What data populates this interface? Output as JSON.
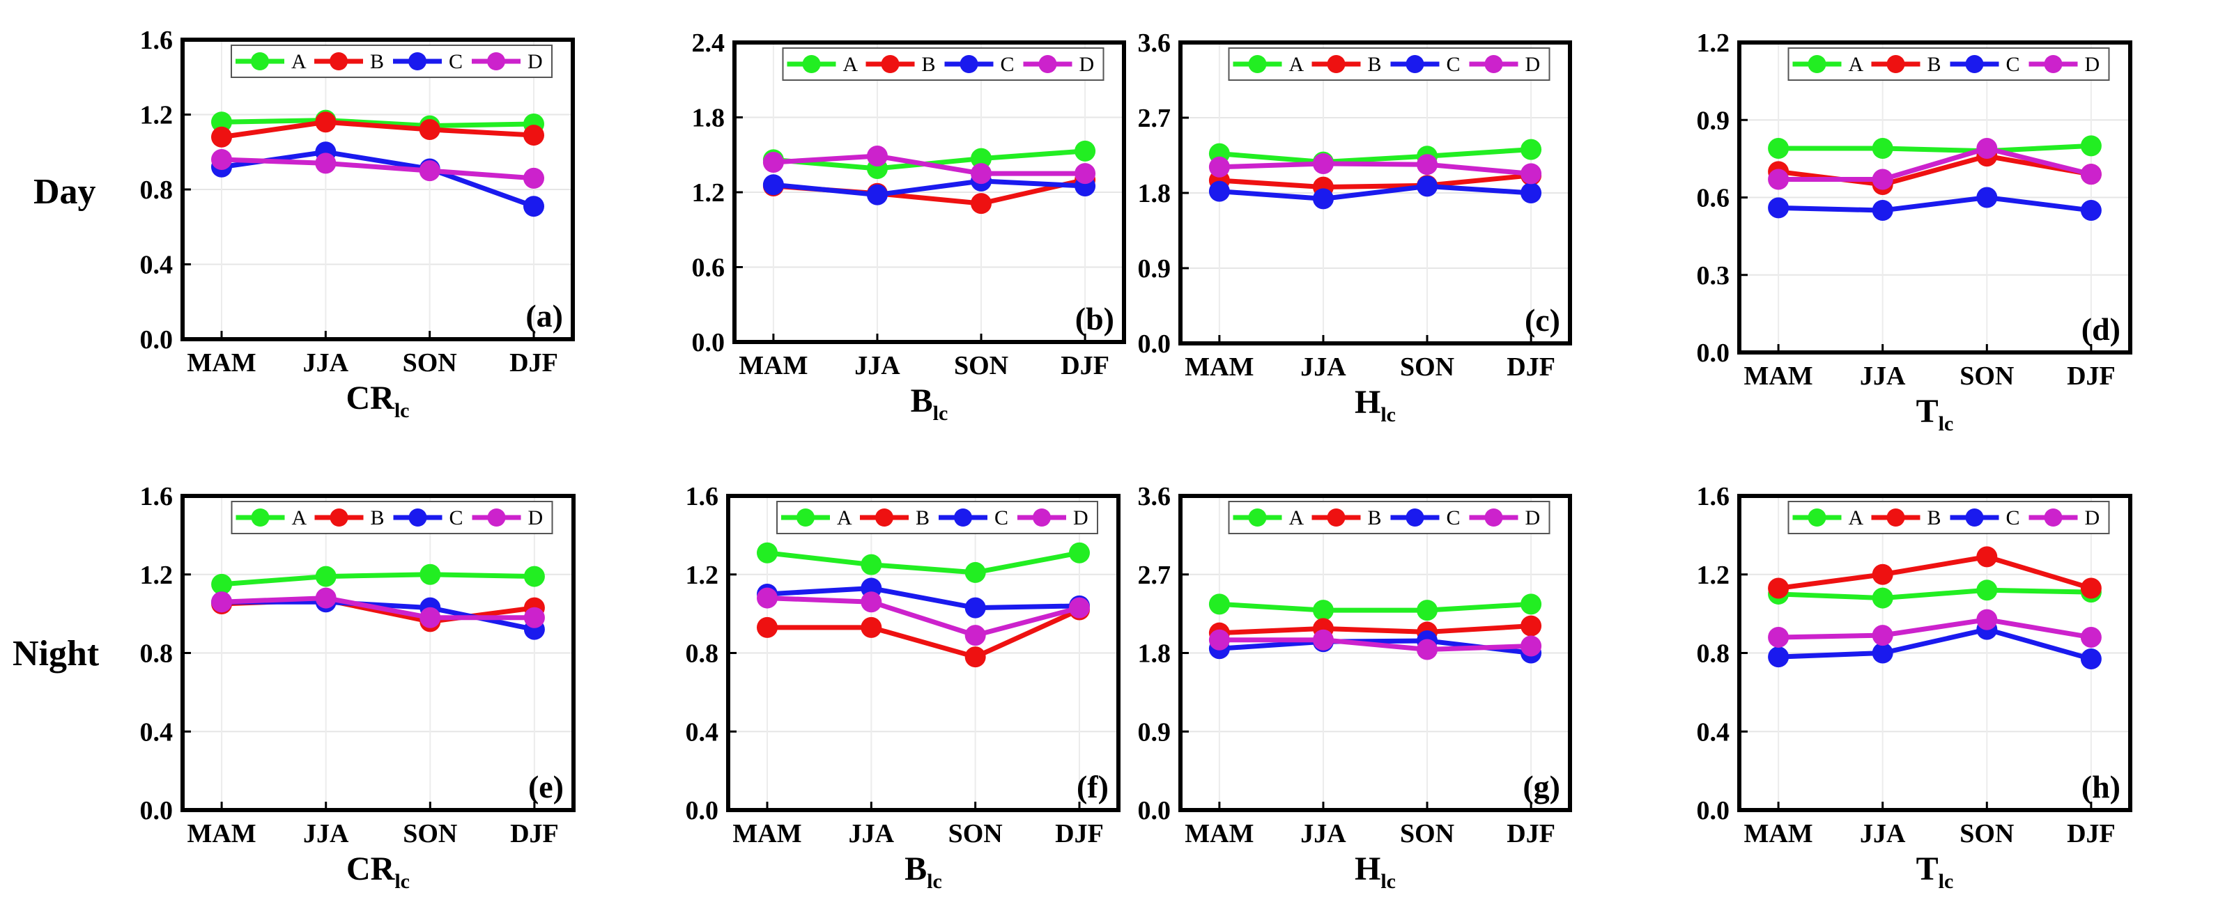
{
  "colors": {
    "A": "#22ee22",
    "B": "#ee1111",
    "C": "#1a1aee",
    "D": "#cc22cc"
  },
  "rows": [
    "Day",
    "Night"
  ],
  "chart_data": [
    {
      "type": "line",
      "label": "(a)",
      "xlabel": {
        "main": "CR",
        "sub": "lc"
      },
      "categories": [
        "MAM",
        "JJA",
        "SON",
        "DJF"
      ],
      "ylim": [
        0,
        1.6
      ],
      "yticks": [
        "0.0",
        "0.4",
        "0.8",
        "1.2",
        "1.6"
      ],
      "legend": "top",
      "series": [
        {
          "name": "A",
          "values": [
            1.16,
            1.17,
            1.14,
            1.15
          ]
        },
        {
          "name": "B",
          "values": [
            1.08,
            1.16,
            1.12,
            1.09
          ]
        },
        {
          "name": "C",
          "values": [
            0.92,
            1.0,
            0.91,
            0.71
          ]
        },
        {
          "name": "D",
          "values": [
            0.96,
            0.94,
            0.9,
            0.86
          ]
        }
      ]
    },
    {
      "type": "line",
      "label": "(b)",
      "xlabel": {
        "main": "B",
        "sub": "lc"
      },
      "categories": [
        "MAM",
        "JJA",
        "SON",
        "DJF"
      ],
      "ylim": [
        0,
        2.4
      ],
      "yticks": [
        "0.0",
        "0.6",
        "1.2",
        "1.8",
        "2.4"
      ],
      "legend": "top",
      "series": [
        {
          "name": "A",
          "values": [
            1.46,
            1.39,
            1.47,
            1.53
          ]
        },
        {
          "name": "B",
          "values": [
            1.25,
            1.19,
            1.11,
            1.3
          ]
        },
        {
          "name": "C",
          "values": [
            1.26,
            1.18,
            1.29,
            1.25
          ]
        },
        {
          "name": "D",
          "values": [
            1.44,
            1.49,
            1.35,
            1.35
          ]
        }
      ]
    },
    {
      "type": "line",
      "label": "(c)",
      "xlabel": {
        "main": "H",
        "sub": "lc"
      },
      "categories": [
        "MAM",
        "JJA",
        "SON",
        "DJF"
      ],
      "ylim": [
        0,
        3.6
      ],
      "yticks": [
        "0.0",
        "0.9",
        "1.8",
        "2.7",
        "3.6"
      ],
      "legend": "top",
      "series": [
        {
          "name": "A",
          "values": [
            2.27,
            2.17,
            2.24,
            2.32
          ]
        },
        {
          "name": "B",
          "values": [
            1.95,
            1.87,
            1.89,
            2.01
          ]
        },
        {
          "name": "C",
          "values": [
            1.82,
            1.73,
            1.88,
            1.8
          ]
        },
        {
          "name": "D",
          "values": [
            2.11,
            2.15,
            2.14,
            2.03
          ]
        }
      ]
    },
    {
      "type": "line",
      "label": "(d)",
      "xlabel": {
        "main": "T",
        "sub": "lc"
      },
      "categories": [
        "MAM",
        "JJA",
        "SON",
        "DJF"
      ],
      "ylim": [
        0,
        1.2
      ],
      "yticks": [
        "0.0",
        "0.3",
        "0.6",
        "0.9",
        "1.2"
      ],
      "legend": "top",
      "series": [
        {
          "name": "A",
          "values": [
            0.79,
            0.79,
            0.78,
            0.8
          ]
        },
        {
          "name": "B",
          "values": [
            0.7,
            0.65,
            0.76,
            0.69
          ]
        },
        {
          "name": "C",
          "values": [
            0.56,
            0.55,
            0.6,
            0.55
          ]
        },
        {
          "name": "D",
          "values": [
            0.67,
            0.67,
            0.79,
            0.69
          ]
        }
      ]
    },
    {
      "type": "line",
      "label": "(e)",
      "xlabel": {
        "main": "CR",
        "sub": "lc"
      },
      "categories": [
        "MAM",
        "JJA",
        "SON",
        "DJF"
      ],
      "ylim": [
        0,
        1.6
      ],
      "yticks": [
        "0.0",
        "0.4",
        "0.8",
        "1.2",
        "1.6"
      ],
      "legend": "top",
      "series": [
        {
          "name": "A",
          "values": [
            1.15,
            1.19,
            1.2,
            1.19
          ]
        },
        {
          "name": "B",
          "values": [
            1.05,
            1.07,
            0.96,
            1.03
          ]
        },
        {
          "name": "C",
          "values": [
            1.06,
            1.06,
            1.03,
            0.92
          ]
        },
        {
          "name": "D",
          "values": [
            1.06,
            1.08,
            0.98,
            0.98
          ]
        }
      ]
    },
    {
      "type": "line",
      "label": "(f)",
      "xlabel": {
        "main": "B",
        "sub": "lc"
      },
      "categories": [
        "MAM",
        "JJA",
        "SON",
        "DJF"
      ],
      "ylim": [
        0,
        1.6
      ],
      "yticks": [
        "0.0",
        "0.4",
        "0.8",
        "1.2",
        "1.6"
      ],
      "legend": "top",
      "series": [
        {
          "name": "A",
          "values": [
            1.31,
            1.25,
            1.21,
            1.31
          ]
        },
        {
          "name": "B",
          "values": [
            0.93,
            0.93,
            0.78,
            1.02
          ]
        },
        {
          "name": "C",
          "values": [
            1.1,
            1.13,
            1.03,
            1.04
          ]
        },
        {
          "name": "D",
          "values": [
            1.08,
            1.06,
            0.89,
            1.03
          ]
        }
      ]
    },
    {
      "type": "line",
      "label": "(g)",
      "xlabel": {
        "main": "H",
        "sub": "lc"
      },
      "categories": [
        "MAM",
        "JJA",
        "SON",
        "DJF"
      ],
      "ylim": [
        0,
        3.6
      ],
      "yticks": [
        "0.0",
        "0.9",
        "1.8",
        "2.7",
        "3.6"
      ],
      "legend": "top",
      "series": [
        {
          "name": "A",
          "values": [
            2.36,
            2.29,
            2.29,
            2.36
          ]
        },
        {
          "name": "B",
          "values": [
            2.03,
            2.08,
            2.04,
            2.11
          ]
        },
        {
          "name": "C",
          "values": [
            1.85,
            1.93,
            1.94,
            1.8
          ]
        },
        {
          "name": "D",
          "values": [
            1.95,
            1.95,
            1.84,
            1.88
          ]
        }
      ]
    },
    {
      "type": "line",
      "label": "(h)",
      "xlabel": {
        "main": "T",
        "sub": "lc"
      },
      "categories": [
        "MAM",
        "JJA",
        "SON",
        "DJF"
      ],
      "ylim": [
        0,
        1.6
      ],
      "yticks": [
        "0.0",
        "0.4",
        "0.8",
        "1.2",
        "1.6"
      ],
      "legend": "top",
      "series": [
        {
          "name": "A",
          "values": [
            1.1,
            1.08,
            1.12,
            1.11
          ]
        },
        {
          "name": "B",
          "values": [
            1.13,
            1.2,
            1.29,
            1.13
          ]
        },
        {
          "name": "C",
          "values": [
            0.78,
            0.8,
            0.92,
            0.77
          ]
        },
        {
          "name": "D",
          "values": [
            0.88,
            0.89,
            0.97,
            0.88
          ]
        }
      ]
    }
  ]
}
